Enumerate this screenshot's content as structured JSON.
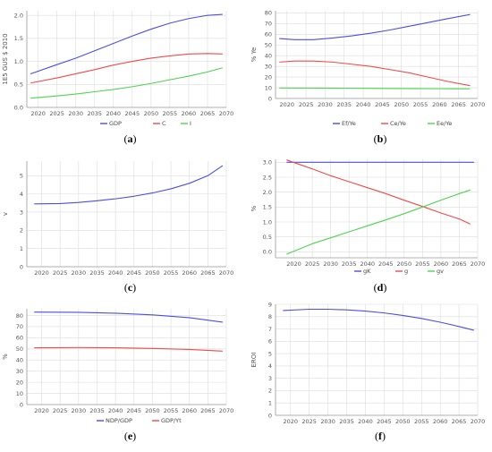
{
  "chart_data": [
    {
      "id": "a",
      "type": "line",
      "caption_letter": "a",
      "x_range": [
        2017,
        2070
      ],
      "ylim": [
        0,
        2.1
      ],
      "x_ticks": [
        "2020",
        "2025",
        "2030",
        "2035",
        "2040",
        "2045",
        "2050",
        "2055",
        "2060",
        "2065",
        "2070"
      ],
      "y_ticks": [
        "0.0",
        "0.5",
        "1.0",
        "1.5",
        "2.0"
      ],
      "ylabel": "1E5 GUS $ 2010",
      "xlabel": "",
      "legend_position": "bottom",
      "series": [
        {
          "name": "GDP",
          "color": "#4a4fe0",
          "points": [
            [
              2018,
              0.73
            ],
            [
              2025,
              0.93
            ],
            [
              2030,
              1.07
            ],
            [
              2035,
              1.23
            ],
            [
              2040,
              1.39
            ],
            [
              2045,
              1.55
            ],
            [
              2050,
              1.7
            ],
            [
              2055,
              1.83
            ],
            [
              2060,
              1.93
            ],
            [
              2065,
              2.0
            ],
            [
              2069,
              2.02
            ]
          ]
        },
        {
          "name": "C",
          "color": "#ef4b4b",
          "points": [
            [
              2018,
              0.53
            ],
            [
              2025,
              0.64
            ],
            [
              2030,
              0.73
            ],
            [
              2035,
              0.82
            ],
            [
              2040,
              0.92
            ],
            [
              2045,
              1.0
            ],
            [
              2050,
              1.07
            ],
            [
              2055,
              1.12
            ],
            [
              2060,
              1.16
            ],
            [
              2065,
              1.17
            ],
            [
              2069,
              1.16
            ]
          ]
        },
        {
          "name": "I",
          "color": "#4fd44f",
          "points": [
            [
              2018,
              0.2
            ],
            [
              2025,
              0.25
            ],
            [
              2030,
              0.29
            ],
            [
              2035,
              0.34
            ],
            [
              2040,
              0.39
            ],
            [
              2045,
              0.45
            ],
            [
              2050,
              0.52
            ],
            [
              2055,
              0.6
            ],
            [
              2060,
              0.68
            ],
            [
              2065,
              0.77
            ],
            [
              2069,
              0.86
            ]
          ]
        }
      ]
    },
    {
      "id": "b",
      "type": "line",
      "caption_letter": "b",
      "x_range": [
        2017,
        2070
      ],
      "ylim": [
        0,
        82
      ],
      "x_ticks": [
        "2020",
        "2025",
        "2030",
        "2035",
        "2040",
        "2045",
        "2050",
        "2055",
        "2060",
        "2065",
        "2070"
      ],
      "y_ticks": [
        "0",
        "10",
        "20",
        "30",
        "40",
        "50",
        "60",
        "70",
        "80"
      ],
      "ylabel": "% Ye",
      "xlabel": "",
      "legend_position": "bottom",
      "series": [
        {
          "name": "Ef/Ye",
          "color": "#4a4fe0",
          "points": [
            [
              2018,
              56
            ],
            [
              2022,
              55
            ],
            [
              2027,
              55
            ],
            [
              2032,
              56.5
            ],
            [
              2037,
              58.5
            ],
            [
              2042,
              61
            ],
            [
              2047,
              64
            ],
            [
              2052,
              67.5
            ],
            [
              2057,
              71
            ],
            [
              2062,
              74.5
            ],
            [
              2068,
              78.5
            ]
          ]
        },
        {
          "name": "Ce/Ye",
          "color": "#ef4b4b",
          "points": [
            [
              2018,
              34
            ],
            [
              2022,
              35
            ],
            [
              2027,
              35
            ],
            [
              2032,
              34
            ],
            [
              2037,
              32
            ],
            [
              2042,
              30
            ],
            [
              2047,
              27
            ],
            [
              2052,
              24
            ],
            [
              2057,
              20
            ],
            [
              2062,
              16
            ],
            [
              2068,
              12
            ]
          ]
        },
        {
          "name": "Ee/Ye",
          "color": "#4fd44f",
          "points": [
            [
              2018,
              9.8
            ],
            [
              2030,
              9.7
            ],
            [
              2040,
              9.5
            ],
            [
              2050,
              9.3
            ],
            [
              2060,
              9.1
            ],
            [
              2068,
              9.0
            ]
          ]
        }
      ]
    },
    {
      "id": "c",
      "type": "line",
      "caption_letter": "c",
      "x_range": [
        2016,
        2070
      ],
      "ylim": [
        0,
        5.8
      ],
      "x_ticks": [
        "2020",
        "2025",
        "2030",
        "2035",
        "2040",
        "2045",
        "2050",
        "2055",
        "2060",
        "2065",
        "2070"
      ],
      "y_ticks": [
        "0",
        "1",
        "2",
        "3",
        "4",
        "5"
      ],
      "ylabel": "v",
      "xlabel": "",
      "legend_position": "none",
      "series": [
        {
          "color": "#4a4fe0",
          "points": [
            [
              2018,
              3.45
            ],
            [
              2025,
              3.47
            ],
            [
              2030,
              3.53
            ],
            [
              2035,
              3.62
            ],
            [
              2040,
              3.73
            ],
            [
              2045,
              3.87
            ],
            [
              2050,
              4.05
            ],
            [
              2055,
              4.28
            ],
            [
              2060,
              4.58
            ],
            [
              2065,
              5.0
            ],
            [
              2069,
              5.55
            ]
          ]
        }
      ]
    },
    {
      "id": "d",
      "type": "line",
      "caption_letter": "d",
      "x_range": [
        2015,
        2070
      ],
      "ylim": [
        -0.2,
        3.1
      ],
      "x_ticks": [
        "2020",
        "2025",
        "2030",
        "2035",
        "2040",
        "2045",
        "2050",
        "2055",
        "2060",
        "2065",
        "2070"
      ],
      "y_ticks": [
        "0.0",
        "0.5",
        "1.0",
        "1.5",
        "2.0",
        "2.5",
        "3.0"
      ],
      "ylabel": "%",
      "xlabel": "",
      "legend_position": "bottom",
      "series": [
        {
          "name": "gK",
          "color": "#4a4fe0",
          "points": [
            [
              2018,
              3.0
            ],
            [
              2069,
              3.0
            ]
          ]
        },
        {
          "name": "g",
          "color": "#ef4b4b",
          "points": [
            [
              2018,
              3.08
            ],
            [
              2025,
              2.78
            ],
            [
              2030,
              2.55
            ],
            [
              2035,
              2.35
            ],
            [
              2040,
              2.15
            ],
            [
              2045,
              1.95
            ],
            [
              2050,
              1.73
            ],
            [
              2055,
              1.52
            ],
            [
              2060,
              1.3
            ],
            [
              2065,
              1.1
            ],
            [
              2068,
              0.93
            ]
          ]
        },
        {
          "name": "gv",
          "color": "#4fd44f",
          "points": [
            [
              2018,
              -0.08
            ],
            [
              2025,
              0.27
            ],
            [
              2030,
              0.47
            ],
            [
              2035,
              0.67
            ],
            [
              2040,
              0.87
            ],
            [
              2045,
              1.07
            ],
            [
              2050,
              1.28
            ],
            [
              2055,
              1.5
            ],
            [
              2060,
              1.73
            ],
            [
              2065,
              1.95
            ],
            [
              2068,
              2.07
            ]
          ]
        }
      ]
    },
    {
      "id": "e",
      "type": "line",
      "caption_letter": "e",
      "x_range": [
        2016,
        2070
      ],
      "ylim": [
        0,
        86
      ],
      "x_ticks": [
        "2020",
        "2025",
        "2030",
        "2035",
        "2040",
        "2045",
        "2050",
        "2055",
        "2060",
        "2065",
        "2070"
      ],
      "y_ticks": [
        "0",
        "10",
        "20",
        "30",
        "40",
        "50",
        "60",
        "70",
        "80"
      ],
      "ylabel": "%",
      "xlabel": "",
      "legend_position": "bottom",
      "series": [
        {
          "name": "NDP/GDP",
          "color": "#4a4fe0",
          "points": [
            [
              2018,
              83
            ],
            [
              2030,
              82.8
            ],
            [
              2040,
              82
            ],
            [
              2050,
              80.5
            ],
            [
              2060,
              78
            ],
            [
              2069,
              74
            ]
          ]
        },
        {
          "name": "GDP/Yt",
          "color": "#ef4b4b",
          "points": [
            [
              2018,
              51
            ],
            [
              2030,
              51.2
            ],
            [
              2040,
              51
            ],
            [
              2050,
              50.4
            ],
            [
              2060,
              49.5
            ],
            [
              2069,
              48
            ]
          ]
        }
      ]
    },
    {
      "id": "f",
      "type": "line",
      "caption_letter": "f",
      "x_range": [
        2016,
        2070
      ],
      "ylim": [
        0,
        9
      ],
      "x_ticks": [
        "2020",
        "2025",
        "2030",
        "2035",
        "2040",
        "2045",
        "2050",
        "2055",
        "2060",
        "2065",
        "2070"
      ],
      "y_ticks": [
        "0",
        "1",
        "2",
        "3",
        "4",
        "5",
        "6",
        "7",
        "8",
        "9"
      ],
      "ylabel": "EROI",
      "xlabel": "",
      "legend_position": "none",
      "series": [
        {
          "color": "#4a4fe0",
          "points": [
            [
              2018,
              8.5
            ],
            [
              2025,
              8.6
            ],
            [
              2030,
              8.6
            ],
            [
              2035,
              8.55
            ],
            [
              2040,
              8.45
            ],
            [
              2045,
              8.3
            ],
            [
              2050,
              8.1
            ],
            [
              2055,
              7.85
            ],
            [
              2060,
              7.55
            ],
            [
              2065,
              7.2
            ],
            [
              2069,
              6.9
            ]
          ]
        }
      ]
    }
  ]
}
